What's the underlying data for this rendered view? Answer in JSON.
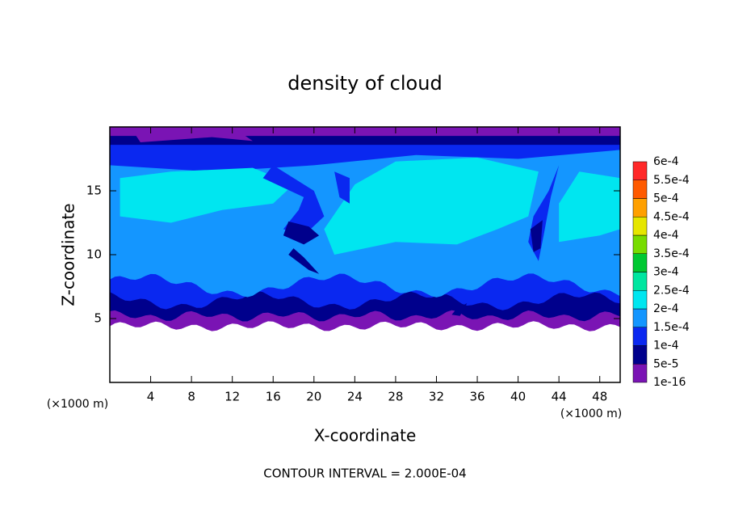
{
  "chart_data": {
    "type": "contour",
    "title": "density of cloud",
    "xlabel": "X-coordinate",
    "ylabel": "Z-coordinate",
    "x_units": [
      "(×1000 m)",
      "(×1000 m)"
    ],
    "annotation": "CONTOUR INTERVAL = 2.000E-04",
    "xlim": [
      0,
      50
    ],
    "xticks": [
      4,
      8,
      12,
      16,
      20,
      24,
      28,
      32,
      36,
      40,
      44,
      48
    ],
    "ylim": [
      0,
      20
    ],
    "yticks": [
      5,
      10,
      15
    ],
    "colorbar": {
      "levels": [
        {
          "value": 1e-16,
          "label": "1e-16"
        },
        {
          "value": 5e-05,
          "label": "5e-5"
        },
        {
          "value": 0.0001,
          "label": "1e-4"
        },
        {
          "value": 0.00015,
          "label": "1.5e-4"
        },
        {
          "value": 0.0002,
          "label": "2e-4"
        },
        {
          "value": 0.00025,
          "label": "2.5e-4"
        },
        {
          "value": 0.0003,
          "label": "3e-4"
        },
        {
          "value": 0.00035,
          "label": "3.5e-4"
        },
        {
          "value": 0.0004,
          "label": "4e-4"
        },
        {
          "value": 0.00045,
          "label": "4.5e-4"
        },
        {
          "value": 0.0005,
          "label": "5e-4"
        },
        {
          "value": 0.00055,
          "label": "5.5e-4"
        },
        {
          "value": 0.0006,
          "label": "6e-4"
        }
      ],
      "colors": [
        "#7a14b4",
        "#00008c",
        "#0a28f0",
        "#1496ff",
        "#00e6f0",
        "#00e6a0",
        "#00c832",
        "#78dc00",
        "#e6e600",
        "#ffa000",
        "#ff5a00",
        "#ff2828"
      ]
    }
  }
}
